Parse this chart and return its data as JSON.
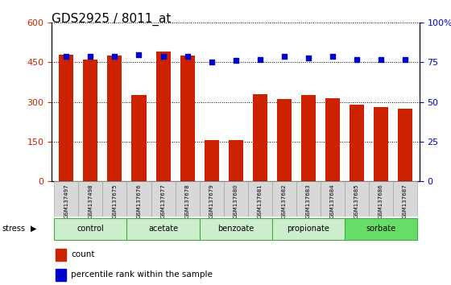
{
  "title": "GDS2925 / 8011_at",
  "samples": [
    "GSM137497",
    "GSM137498",
    "GSM137675",
    "GSM137676",
    "GSM137677",
    "GSM137678",
    "GSM137679",
    "GSM137680",
    "GSM137681",
    "GSM137682",
    "GSM137683",
    "GSM137684",
    "GSM137685",
    "GSM137686",
    "GSM137687"
  ],
  "counts": [
    480,
    460,
    475,
    325,
    490,
    475,
    155,
    155,
    330,
    310,
    325,
    315,
    290,
    280,
    275
  ],
  "percentiles": [
    79,
    79,
    79,
    80,
    79,
    79,
    75,
    76,
    77,
    79,
    78,
    79,
    77,
    77,
    77
  ],
  "groups": [
    {
      "name": "control",
      "start": 0,
      "end": 3,
      "color": "#cceecc"
    },
    {
      "name": "acetate",
      "start": 3,
      "end": 6,
      "color": "#cceecc"
    },
    {
      "name": "benzoate",
      "start": 6,
      "end": 9,
      "color": "#cceecc"
    },
    {
      "name": "propionate",
      "start": 9,
      "end": 12,
      "color": "#cceecc"
    },
    {
      "name": "sorbate",
      "start": 12,
      "end": 15,
      "color": "#66dd66"
    }
  ],
  "ylim_left": [
    0,
    600
  ],
  "ylim_right": [
    0,
    100
  ],
  "yticks_left": [
    0,
    150,
    300,
    450,
    600
  ],
  "yticks_right": [
    0,
    25,
    50,
    75,
    100
  ],
  "bar_color": "#cc2200",
  "dot_color": "#0000cc",
  "bg_color": "#d8d8d8",
  "title_fontsize": 11,
  "tick_fontsize": 7,
  "stress_label": "stress"
}
